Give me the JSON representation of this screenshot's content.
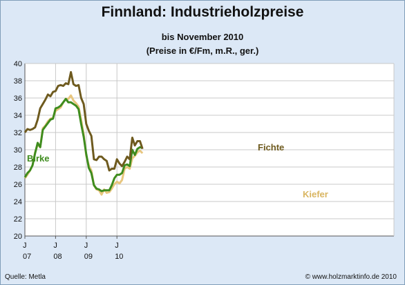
{
  "chart_data": {
    "type": "line",
    "title": "Finnland: Industrieholzpreise",
    "subtitle": [
      "bis November 2010",
      "(Preise in €/Fm, m.R., ger.)"
    ],
    "xlabel": "",
    "ylabel": "",
    "ylim": [
      20,
      40
    ],
    "yticks": [
      "20",
      "22",
      "24",
      "26",
      "28",
      "30",
      "32",
      "34",
      "36",
      "38",
      "40"
    ],
    "x_ticks": [
      {
        "month_index": 0,
        "top": "J",
        "bottom": "07"
      },
      {
        "month_index": 12,
        "top": "J",
        "bottom": "08"
      },
      {
        "month_index": 24,
        "top": "J",
        "bottom": "09"
      },
      {
        "month_index": 36,
        "top": "J",
        "bottom": "10"
      }
    ],
    "grid": true,
    "series": [
      {
        "name": "Fichte",
        "color": "#6e5a1e",
        "values": [
          32.0,
          32.4,
          32.3,
          32.4,
          32.6,
          33.5,
          34.8,
          35.3,
          35.8,
          36.4,
          36.2,
          36.7,
          36.8,
          37.4,
          37.5,
          37.4,
          37.7,
          37.6,
          39.0,
          37.6,
          37.4,
          37.5,
          36.0,
          35.3,
          33.0,
          32.2,
          31.6,
          28.9,
          28.8,
          29.2,
          29.2,
          28.9,
          28.7,
          27.6,
          27.8,
          27.8,
          28.9,
          28.4,
          28.1,
          28.6,
          29.2,
          28.9,
          31.4,
          30.5,
          31.0,
          31.0,
          30.1
        ]
      },
      {
        "name": "Birke",
        "color": "#3e8c1e",
        "values": [
          26.8,
          27.3,
          27.6,
          28.2,
          29.6,
          30.8,
          30.3,
          32.3,
          32.7,
          33.1,
          33.5,
          33.6,
          34.8,
          34.9,
          35.1,
          35.5,
          35.9,
          35.5,
          35.5,
          35.3,
          35.1,
          34.7,
          33.0,
          31.5,
          29.5,
          27.9,
          27.3,
          25.9,
          25.5,
          25.4,
          25.2,
          25.3,
          25.3,
          25.3,
          25.9,
          26.7,
          27.1,
          27.1,
          27.3,
          28.2,
          28.3,
          28.1,
          30.0,
          29.4,
          30.1,
          30.3,
          30.2
        ]
      },
      {
        "name": "Kiefer",
        "color": "#e8c67f",
        "values": [
          26.7,
          27.1,
          27.6,
          28.2,
          29.7,
          30.6,
          30.3,
          32.5,
          32.8,
          33.3,
          33.6,
          33.7,
          34.5,
          34.7,
          34.9,
          35.5,
          35.9,
          35.9,
          36.3,
          35.7,
          35.4,
          35.0,
          33.5,
          31.8,
          29.3,
          28.2,
          27.6,
          25.9,
          25.4,
          25.3,
          24.8,
          25.4,
          25.0,
          25.1,
          25.5,
          26.0,
          26.3,
          26.1,
          26.5,
          27.8,
          28.0,
          27.8,
          29.0,
          29.3,
          29.7,
          29.9,
          29.6
        ]
      }
    ],
    "source": "Quelle: Metla",
    "copyright": "© www.holzmarktinfo.de 2010"
  }
}
